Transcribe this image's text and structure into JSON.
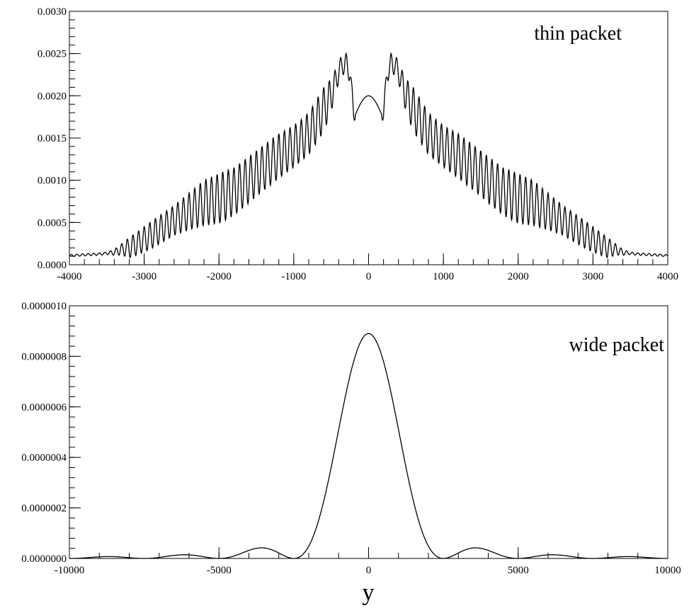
{
  "chart_data": [
    {
      "type": "line",
      "title": "",
      "annotation": "thin packet",
      "xlabel": "",
      "ylabel": "",
      "xlim": [
        -4000,
        4000
      ],
      "ylim": [
        0,
        0.003
      ],
      "grid": false,
      "x_ticks": [
        -4000,
        -3000,
        -2000,
        -1000,
        0,
        1000,
        2000,
        3000,
        4000
      ],
      "x_tick_labels": [
        "-4000",
        "-3000",
        "-2000",
        "-1000",
        "0",
        "1000",
        "2000",
        "3000",
        "4000"
      ],
      "y_ticks": [
        0,
        0.0005,
        0.001,
        0.0015,
        0.002,
        0.0025,
        0.003
      ],
      "y_tick_labels": [
        "0.0000",
        "0.0005",
        "0.0010",
        "0.0015",
        "0.0020",
        "0.0025",
        "0.0030"
      ],
      "envelope": {
        "x": [
          -4000,
          -3800,
          -3600,
          -3500,
          -3400,
          -3300,
          -3200,
          -3000,
          -2800,
          -2600,
          -2400,
          -2200,
          -2000,
          -1800,
          -1600,
          -1400,
          -1200,
          -1000,
          -900,
          -800,
          -700,
          -600,
          -500,
          -400,
          -350,
          -300,
          -250,
          -200,
          -100,
          0
        ],
        "y": [
          0.00012,
          0.00013,
          0.00014,
          0.00015,
          0.00018,
          0.00025,
          0.00032,
          0.00045,
          0.00058,
          0.0007,
          0.00085,
          0.001,
          0.00108,
          0.00115,
          0.00128,
          0.00142,
          0.00155,
          0.00165,
          0.00172,
          0.0018,
          0.00195,
          0.0021,
          0.0022,
          0.0024,
          0.0025,
          0.0025,
          0.0024,
          0.0019,
          0.0019,
          0.002
        ]
      },
      "oscillation": {
        "period": 75,
        "relative_depth": [
          [
            3500,
            0.2
          ],
          [
            3200,
            0.75
          ],
          [
            2600,
            0.5
          ],
          [
            2000,
            0.55
          ],
          [
            1500,
            0.4
          ],
          [
            1000,
            0.3
          ],
          [
            600,
            0.25
          ],
          [
            400,
            0.1
          ]
        ]
      },
      "central_dip": {
        "x": [
          -180,
          180
        ],
        "y": 0.00177
      },
      "series": [
        {
          "name": "thin packet"
        }
      ]
    },
    {
      "type": "line",
      "title": "",
      "annotation": "wide packet",
      "xlabel": "y",
      "ylabel": "",
      "xlim": [
        -10000,
        10000
      ],
      "ylim": [
        0,
        1e-06
      ],
      "grid": false,
      "x_ticks": [
        -10000,
        -5000,
        0,
        5000,
        10000
      ],
      "x_tick_labels": [
        "-10000",
        "-5000",
        "0",
        "5000",
        "10000"
      ],
      "y_ticks": [
        0,
        2e-07,
        4e-07,
        6e-07,
        8e-07,
        1e-06
      ],
      "y_tick_labels": [
        "0.0000000",
        "0.0000002",
        "0.0000004",
        "0.0000006",
        "0.0000008",
        "0.0000010"
      ],
      "peak": {
        "x": 0,
        "y": 8.9e-07
      },
      "zeros": [
        -7500,
        -5000,
        -2500,
        2500,
        5000,
        7500
      ],
      "series": [
        {
          "name": "wide packet"
        }
      ]
    }
  ]
}
